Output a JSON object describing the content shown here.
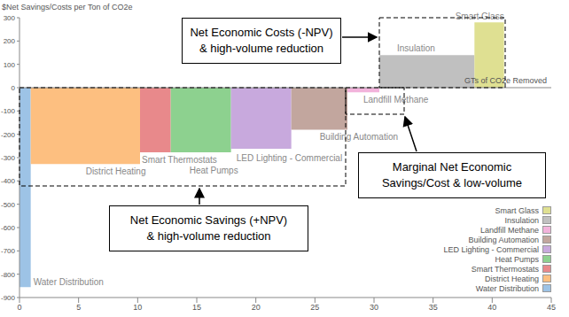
{
  "chart_data": {
    "type": "bar",
    "ylabel": "$Net Savings/Costs per Ton of CO2e",
    "xlabel": "GTs of CO2e Removed",
    "categories": [
      "Water Distribution",
      "District Heating",
      "Smart Thermostats",
      "Heat Pumps",
      "LED Lighting - Commercial",
      "Building Automation",
      "Landfill Methane",
      "Insulation",
      "Smart Glass"
    ],
    "values": [
      -855,
      -328,
      -277,
      -277,
      -262,
      -180,
      -20,
      140,
      280
    ],
    "widths": [
      0.95,
      9.25,
      2.6,
      5.1,
      5.1,
      4.75,
      2.7,
      8.05,
      2.5
    ],
    "colors": [
      "#9dc3e6",
      "#fdbf80",
      "#e8898b",
      "#8dd18f",
      "#c8a9dd",
      "#c2a69e",
      "#f2b3db",
      "#c0c0c0",
      "#dfe092"
    ],
    "xlim": [
      0,
      45
    ],
    "xticks": [
      0,
      5,
      10,
      15,
      20,
      25,
      30,
      35,
      40,
      45
    ],
    "ylim": [
      -900,
      300
    ],
    "yticks": [
      300,
      200,
      100,
      0,
      -100,
      -200,
      -300,
      -400,
      -500,
      -600,
      -700,
      -800,
      -900
    ],
    "grid": false,
    "legend": "lower right",
    "annotations": [
      {
        "lines": [
          "Net Economic Costs (-NPV)",
          "& high-volume reduction"
        ]
      },
      {
        "lines": [
          "Marginal Net Economic",
          "Savings/Cost & low-volume"
        ]
      },
      {
        "lines": [
          "Net Economic Savings (+NPV)",
          "& high-volume reduction"
        ]
      }
    ]
  }
}
